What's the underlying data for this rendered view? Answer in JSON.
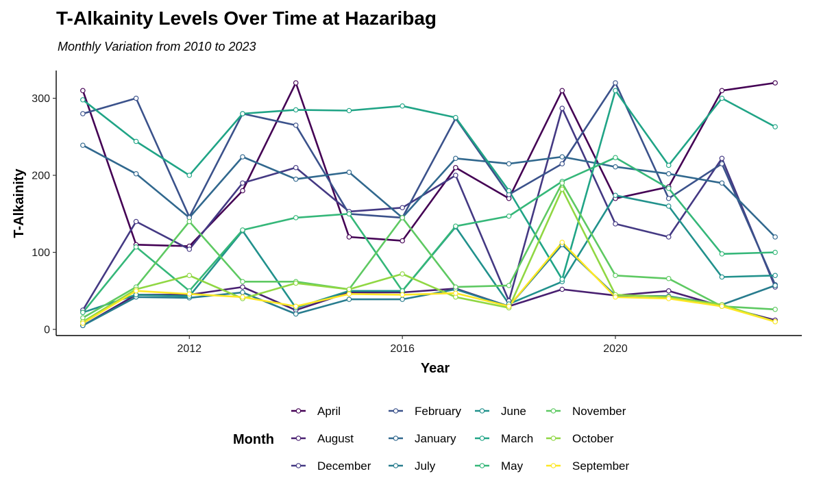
{
  "chart_data": {
    "type": "line",
    "title": "T-Alkainity Levels Over Time at Hazaribag",
    "subtitle": "Monthly Variation from 2010 to 2023",
    "xlabel": "Year",
    "ylabel": "T-Alkainity",
    "xlim": [
      2009.5,
      2023.5
    ],
    "ylim": [
      -8,
      336
    ],
    "x_ticks": [
      2012,
      2016,
      2020
    ],
    "y_ticks": [
      0,
      100,
      200,
      300
    ],
    "grid": false,
    "legend_title": "Month",
    "legend_position": "bottom",
    "x": [
      2010,
      2011,
      2012,
      2013,
      2014,
      2015,
      2016,
      2017,
      2018,
      2019,
      2020,
      2021,
      2022,
      2023
    ],
    "series": [
      {
        "name": "April",
        "color": "#440154",
        "values": [
          310,
          110,
          108,
          180,
          320,
          120,
          115,
          210,
          170,
          310,
          170,
          185,
          310,
          320
        ]
      },
      {
        "name": "August",
        "color": "#481f70",
        "values": [
          5,
          45,
          45,
          55,
          25,
          48,
          48,
          53,
          30,
          52,
          44,
          50,
          30,
          12
        ]
      },
      {
        "name": "December",
        "color": "#443983",
        "values": [
          25,
          140,
          104,
          190,
          210,
          153,
          158,
          200,
          37,
          287,
          137,
          120,
          222,
          55
        ]
      },
      {
        "name": "February",
        "color": "#3b528b",
        "values": [
          280,
          300,
          146,
          280,
          265,
          150,
          145,
          274,
          175,
          215,
          320,
          170,
          215,
          58
        ]
      },
      {
        "name": "January",
        "color": "#31688e",
        "values": [
          239,
          202,
          145,
          224,
          195,
          204,
          145,
          222,
          215,
          224,
          211,
          202,
          190,
          120
        ]
      },
      {
        "name": "July",
        "color": "#287c8e",
        "values": [
          5,
          42,
          41,
          48,
          20,
          39,
          39,
          52,
          30,
          110,
          44,
          43,
          32,
          57
        ]
      },
      {
        "name": "June",
        "color": "#21918c",
        "values": [
          22,
          45,
          43,
          128,
          28,
          50,
          50,
          133,
          33,
          62,
          174,
          160,
          68,
          70
        ]
      },
      {
        "name": "March",
        "color": "#20a486",
        "values": [
          298,
          244,
          200,
          280,
          285,
          284,
          290,
          275,
          180,
          65,
          310,
          213,
          300,
          263
        ]
      },
      {
        "name": "May",
        "color": "#35b779",
        "values": [
          22,
          107,
          50,
          129,
          145,
          150,
          50,
          134,
          147,
          192,
          223,
          183,
          98,
          100
        ]
      },
      {
        "name": "November",
        "color": "#5ec962",
        "values": [
          15,
          55,
          140,
          62,
          62,
          52,
          145,
          55,
          57,
          190,
          70,
          66,
          30,
          26
        ]
      },
      {
        "name": "October",
        "color": "#90d743",
        "values": [
          10,
          52,
          70,
          40,
          60,
          52,
          72,
          42,
          28,
          182,
          45,
          42,
          32,
          10
        ]
      },
      {
        "name": "September",
        "color": "#fde725",
        "values": [
          8,
          50,
          46,
          42,
          30,
          46,
          45,
          47,
          30,
          113,
          42,
          40,
          30,
          10
        ]
      }
    ]
  }
}
